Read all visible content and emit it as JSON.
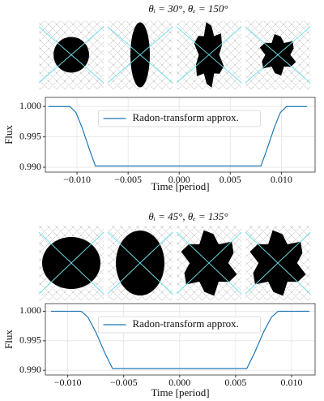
{
  "chart_data": [
    {
      "type": "line",
      "title": "θᵢ = 30°, θₑ = 150°",
      "x": [
        -0.0128,
        -0.0107,
        -0.0101,
        -0.0095,
        -0.0088,
        -0.0082,
        0.008,
        0.0086,
        0.0093,
        0.0099,
        0.0105,
        0.0125
      ],
      "series": [
        {
          "name": "Radon-transform approx.",
          "color": "#1f77b4",
          "values": [
            1.0,
            1.0,
            0.999,
            0.9965,
            0.993,
            0.9902,
            0.9902,
            0.993,
            0.9965,
            0.999,
            1.0,
            1.0
          ]
        }
      ],
      "xlim": [
        -0.0131,
        0.0133
      ],
      "ylim": [
        0.9892,
        1.0015
      ],
      "xticks": [
        {
          "value": -0.01,
          "label": "−0.010"
        },
        {
          "value": -0.005,
          "label": "−0.005"
        },
        {
          "value": 0,
          "label": "0.000"
        },
        0.005,
        {
          "value": 0.01,
          "label": "0.010"
        }
      ],
      "yticks": [
        {
          "value": 0.99,
          "label": "0.990"
        },
        0.995,
        {
          "value": 1.0,
          "label": "1.000"
        }
      ],
      "xlabel": "Time [period]",
      "ylabel": "Flux",
      "grid": true,
      "legend": "upper center"
    },
    {
      "type": "line",
      "title": "θᵢ = 45°, θₑ = 135°",
      "x": [
        -0.0115,
        -0.0088,
        -0.0082,
        -0.0075,
        -0.0067,
        -0.006,
        0.006,
        0.0067,
        0.0075,
        0.0082,
        0.0088,
        0.0116
      ],
      "series": [
        {
          "name": "Radon-transform approx.",
          "color": "#1f77b4",
          "values": [
            1.0,
            1.0,
            0.999,
            0.9965,
            0.993,
            0.9903,
            0.9903,
            0.993,
            0.9965,
            0.999,
            1.0,
            1.0
          ]
        }
      ],
      "xlim": [
        -0.012,
        0.0121
      ],
      "ylim": [
        0.9892,
        1.0013
      ],
      "xticks": [
        {
          "value": -0.01,
          "label": "−0.010"
        },
        {
          "value": -0.005,
          "label": "−0.005"
        },
        {
          "value": 0,
          "label": "0.000"
        },
        0.005,
        {
          "value": 0.01,
          "label": "0.010"
        }
      ],
      "yticks": [
        {
          "value": 0.99,
          "label": "0.990"
        },
        0.995,
        {
          "value": 1.0,
          "label": "1.000"
        }
      ],
      "xlabel": "Time [period]",
      "ylabel": "Flux",
      "grid": true,
      "legend": "upper center"
    }
  ]
}
